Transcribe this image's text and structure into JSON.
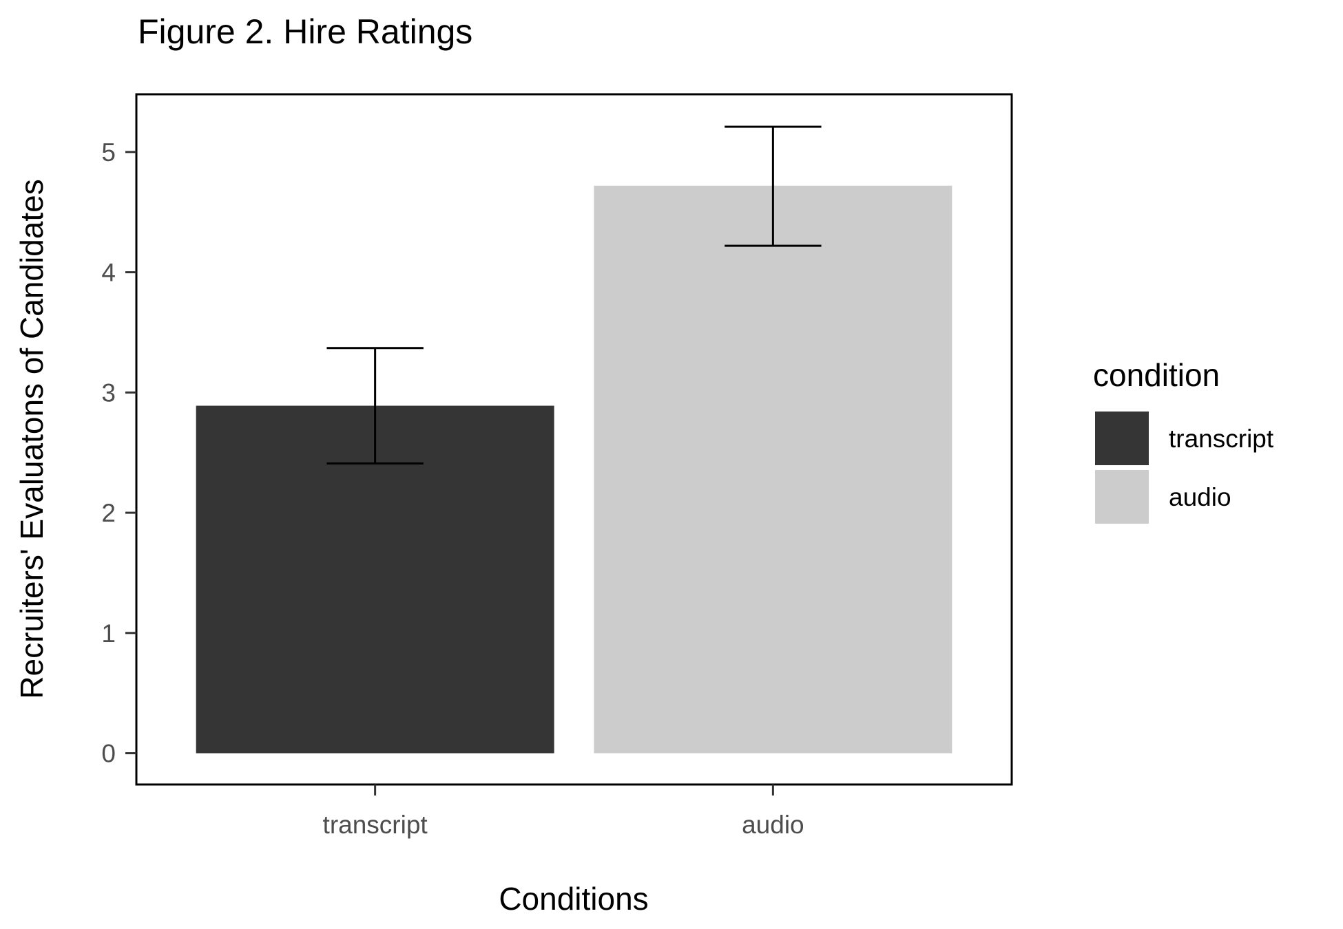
{
  "chart_data": {
    "type": "bar",
    "title": "Figure 2. Hire Ratings",
    "xlabel": "Conditions",
    "ylabel": "Recruiters' Evaluatons of Candidates",
    "categories": [
      "transcript",
      "audio"
    ],
    "values": [
      2.89,
      4.72
    ],
    "error_bars": [
      {
        "low": 2.41,
        "high": 3.37
      },
      {
        "low": 4.22,
        "high": 5.21
      }
    ],
    "ylim": [
      -0.26,
      5.48
    ],
    "yticks": [
      0,
      1,
      2,
      3,
      4,
      5
    ],
    "grid": false,
    "legend": {
      "title": "condition",
      "placement": "right",
      "entries": [
        {
          "label": "transcript",
          "color": "#353535"
        },
        {
          "label": "audio",
          "color": "#cccccc"
        }
      ]
    },
    "colors": [
      "#353535",
      "#cccccc"
    ]
  }
}
